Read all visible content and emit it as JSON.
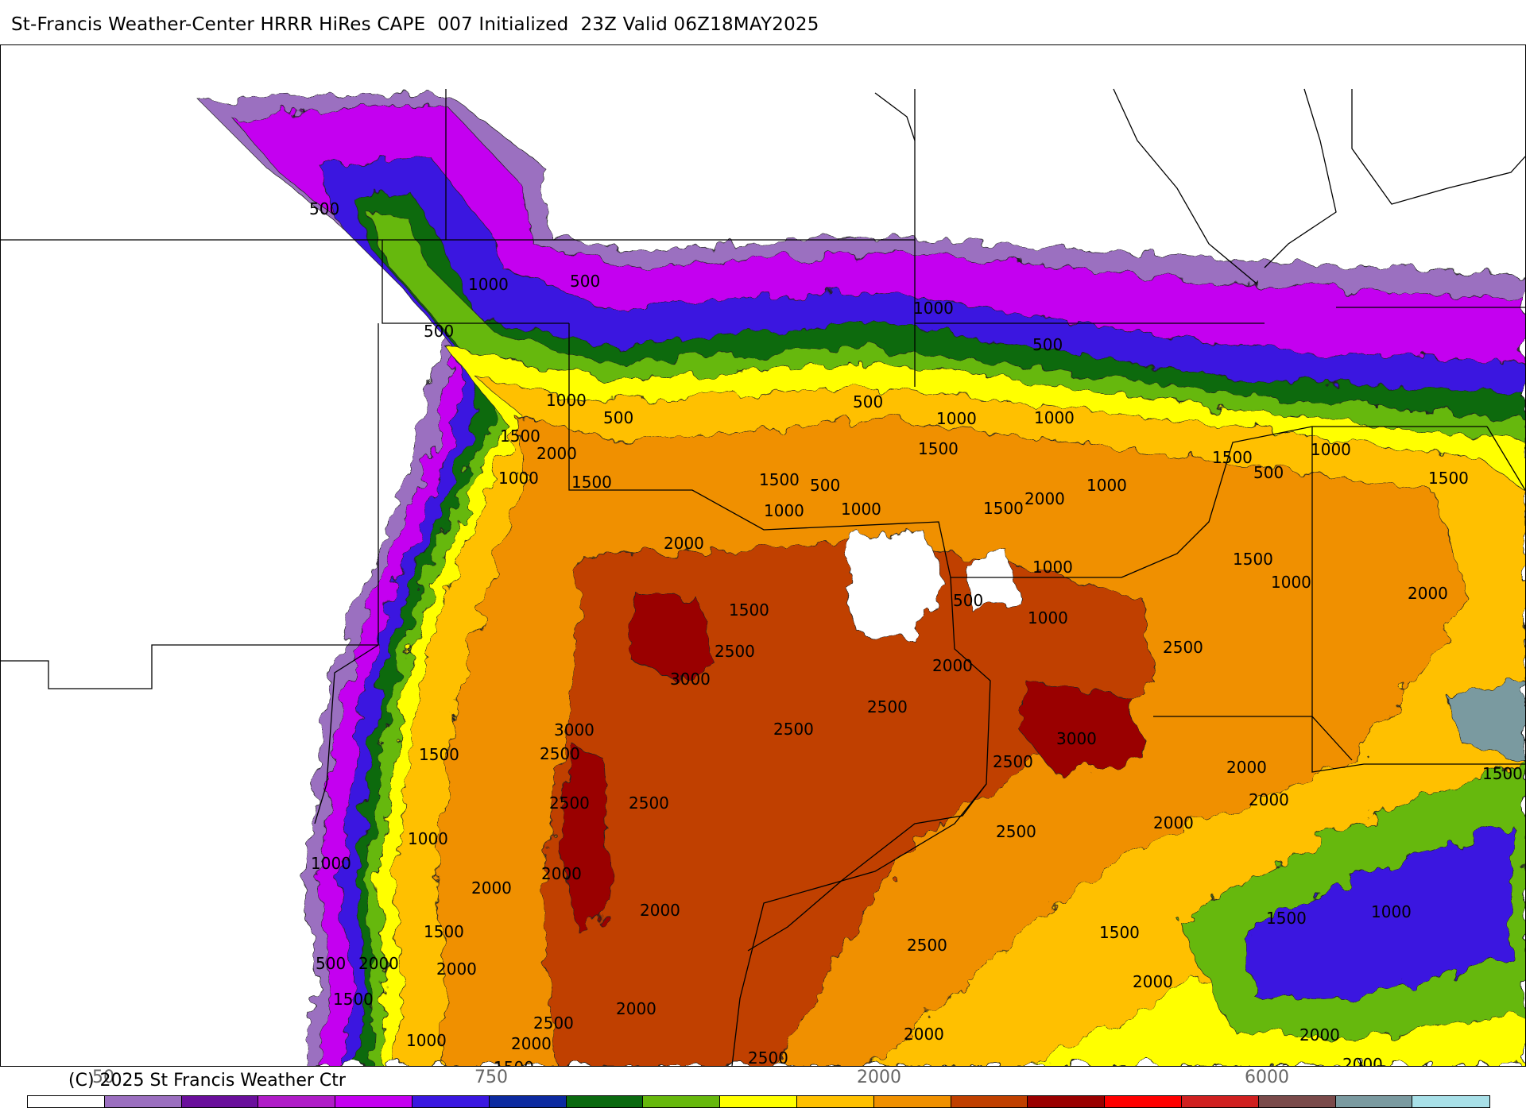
{
  "header": {
    "title": "St-Francis Weather-Center HRRR HiRes CAPE  007 Initialized  23Z Valid 06Z18MAY2025"
  },
  "footer": {
    "copyright": "(C) 2025 St Francis Weather Ctr",
    "scale_tick_labels": [
      "50",
      "750",
      "2000",
      "6000"
    ]
  },
  "colors": {
    "scale": [
      "#ffffff",
      "#9b6fc0",
      "#6a0f9c",
      "#b01cc8",
      "#c400f0",
      "#3a17e0",
      "#0c2aa0",
      "#0a6a10",
      "#66b80c",
      "#ffff00",
      "#ffc000",
      "#f09000",
      "#c04000",
      "#9a0000",
      "#ff0000",
      "#d02020",
      "#7a4a4a",
      "#7a9aa0",
      "#a8e0e8"
    ]
  },
  "map": {
    "contour_labels": [
      "500",
      "1000",
      "500",
      "500",
      "1000",
      "500",
      "1500",
      "2000",
      "1000",
      "1500",
      "1000",
      "500",
      "2000",
      "1500",
      "500",
      "1000",
      "1000",
      "1000",
      "1500",
      "500",
      "1000",
      "1000",
      "1500",
      "2000",
      "1500",
      "1000",
      "1500",
      "500",
      "1500",
      "1000",
      "2000",
      "2500",
      "3000",
      "1500",
      "500",
      "1000",
      "2000",
      "3000",
      "2500",
      "2500",
      "2500",
      "3000",
      "2500",
      "1500",
      "2500",
      "2500",
      "2000",
      "1000",
      "1000",
      "2000",
      "2000",
      "2500",
      "1500",
      "500",
      "2000",
      "2000",
      "1500",
      "2500",
      "1000",
      "2000",
      "1500",
      "2500",
      "2000",
      "2000",
      "1500",
      "2000",
      "2500",
      "1500",
      "1000",
      "2000",
      "2000",
      "2000",
      "1500",
      "2000",
      "2000",
      "2500",
      "1000"
    ]
  }
}
